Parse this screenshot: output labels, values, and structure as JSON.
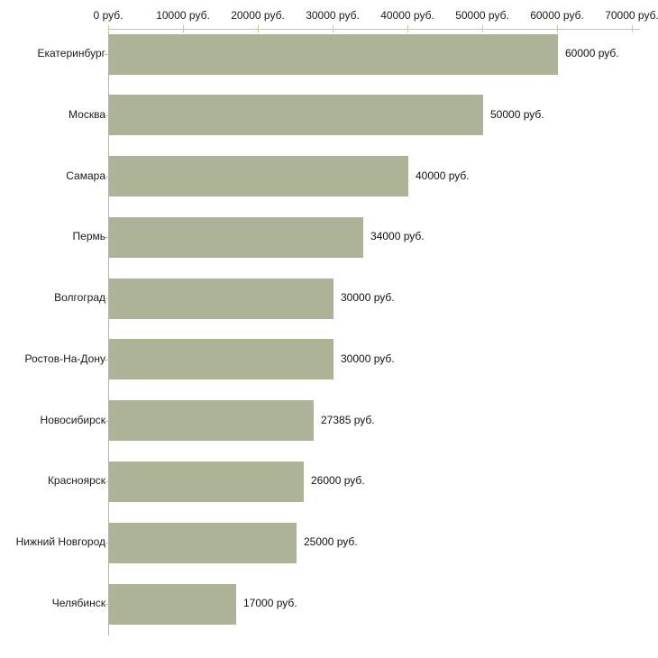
{
  "chart_data": {
    "type": "bar",
    "orientation": "horizontal",
    "title": "",
    "xlabel": "",
    "ylabel": "",
    "unit": "руб.",
    "categories": [
      "Екатеринбург",
      "Москва",
      "Самара",
      "Пермь",
      "Волгоград",
      "Ростов-На-Дону",
      "Новосибирск",
      "Красноярск",
      "Нижний Новгород",
      "Челябинск"
    ],
    "values": [
      60000,
      50000,
      40000,
      34000,
      30000,
      30000,
      27385,
      26000,
      25000,
      17000
    ],
    "value_labels": [
      "60000 руб.",
      "50000 руб.",
      "40000 руб.",
      "34000 руб.",
      "30000 руб.",
      "30000 руб.",
      "27385 руб.",
      "26000 руб.",
      "25000 руб.",
      "17000 руб."
    ],
    "xlim": [
      0,
      70000
    ],
    "x_ticks": [
      0,
      10000,
      20000,
      30000,
      40000,
      50000,
      60000,
      70000
    ],
    "x_tick_labels": [
      "0 руб.",
      "10000 руб.",
      "20000 руб.",
      "30000 руб.",
      "40000 руб.",
      "50000 руб.",
      "60000 руб.",
      "70000 руб."
    ],
    "grid": false,
    "legend": "none",
    "colors": {
      "bar_fill": "#adb397",
      "axis_line": "#c2c2c2",
      "left_axis_line": "#b3b3b3",
      "tick_mark": "#c8c89e",
      "label_text": "#1a1a1a",
      "value_text": "#111111",
      "background": "#ffffff"
    }
  }
}
